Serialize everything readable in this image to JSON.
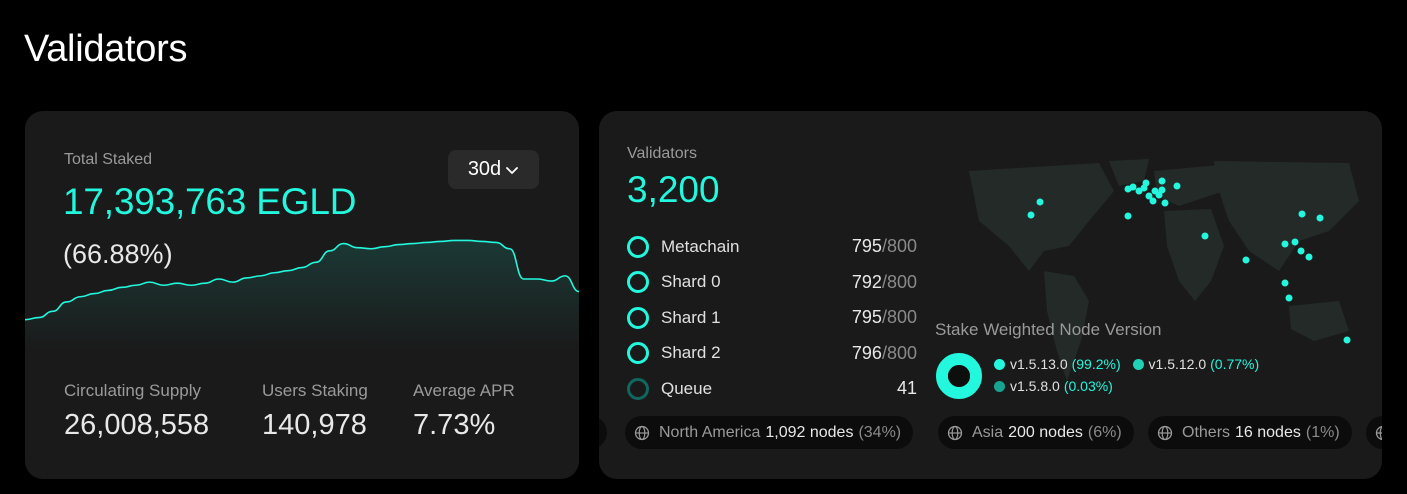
{
  "page": {
    "title": "Validators"
  },
  "staking": {
    "label": "Total Staked",
    "value": "17,393,763 EGLD",
    "percent": "(66.88%)",
    "range_selector": "30d",
    "trend": [
      30,
      32,
      38,
      47,
      52,
      55,
      58,
      61,
      63,
      66,
      63,
      65,
      63,
      65,
      69,
      66,
      70,
      72,
      75,
      77,
      80,
      85,
      96,
      103,
      99,
      98,
      100,
      102,
      103,
      104,
      105,
      106,
      106,
      105,
      104,
      98,
      69,
      69,
      67,
      72,
      57
    ]
  },
  "stats": [
    {
      "label": "Circulating Supply",
      "value": "26,008,558"
    },
    {
      "label": "Users Staking",
      "value": "140,978"
    },
    {
      "label": "Average APR",
      "value": "7.73%"
    }
  ],
  "validators": {
    "label": "Validators",
    "value": "3,200",
    "shards": [
      {
        "name": "Metachain",
        "count": "795",
        "max": "800"
      },
      {
        "name": "Shard 0",
        "count": "792",
        "max": "800"
      },
      {
        "name": "Shard 1",
        "count": "795",
        "max": "800"
      },
      {
        "name": "Shard 2",
        "count": "796",
        "max": "800"
      },
      {
        "name": "Queue",
        "count": "41",
        "max": ""
      }
    ]
  },
  "node_version": {
    "title": "Stake Weighted Node Version",
    "versions": [
      {
        "name": "v1.5.13.0",
        "pct": "(99.2%)",
        "share": 0.992,
        "color": "#23f7dd"
      },
      {
        "name": "v1.5.12.0",
        "pct": "(0.77%)",
        "share": 0.0077,
        "color": "#1fd3b8"
      },
      {
        "name": "v1.5.8.0",
        "pct": "(0.03%)",
        "share": 0.0003,
        "color": "#17a592"
      }
    ]
  },
  "regions": {
    "leading_fragment": "s)",
    "items": [
      {
        "name": "North America",
        "count": "1,092 nodes",
        "pct": "(34%)"
      },
      {
        "name": "Asia",
        "count": "200 nodes",
        "pct": "(6%)"
      },
      {
        "name": "Others",
        "count": "16 nodes",
        "pct": "(1%)"
      }
    ],
    "icon": "globe-icon"
  },
  "colors": {
    "accent": "#23f7dd",
    "card": "#1a1a1a",
    "background": "#000000"
  }
}
